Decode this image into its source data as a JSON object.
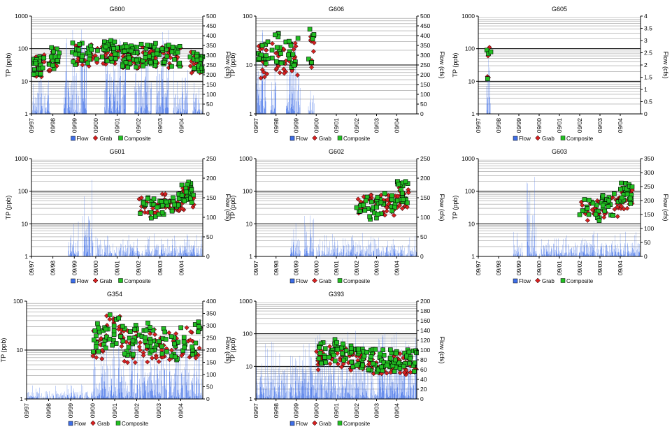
{
  "colors": {
    "flow": "#3f6fe8",
    "grab": "#d62020",
    "composite": "#22c022",
    "axis": "#000000",
    "major_grid": "#000000",
    "minor_grid": "#9a9a9a"
  },
  "legend": {
    "flow": "Flow",
    "grab": "Grab",
    "composite": "Composite"
  },
  "chart_data": [
    {
      "type": "line",
      "title": "G600",
      "ylabel": "TP (ppb)",
      "y2label": "Flow (cfs)",
      "yscale": "log",
      "ylim": [
        1,
        1000
      ],
      "y2lim": [
        0,
        500
      ],
      "y2ticks": [
        0,
        50,
        100,
        150,
        200,
        250,
        300,
        350,
        400,
        450,
        500
      ],
      "xticks": [
        "09/97",
        "09/98",
        "09/99",
        "09/00",
        "09/01",
        "09/02",
        "09/03",
        "09/04"
      ],
      "series": [
        {
          "name": "Flow",
          "kind": "area",
          "activity": [
            [
              0.0,
              0.9,
              200
            ],
            [
              1.5,
              2.6,
              460
            ],
            [
              3.4,
              4.4,
              420
            ],
            [
              4.8,
              5.6,
              380
            ],
            [
              5.8,
              6.4,
              430
            ],
            [
              6.6,
              7.3,
              260
            ],
            [
              7.5,
              8.0,
              200
            ]
          ]
        },
        {
          "name": "Grab",
          "kind": "points",
          "clusters": [
            [
              0.1,
              0.6,
              30,
              18
            ],
            [
              0.8,
              1.3,
              45,
              14
            ],
            [
              1.9,
              3.1,
              60,
              22
            ],
            [
              3.3,
              4.1,
              70,
              26
            ],
            [
              4.2,
              5.0,
              55,
              30
            ],
            [
              5.1,
              6.0,
              60,
              26
            ],
            [
              6.1,
              7.0,
              55,
              22
            ],
            [
              7.4,
              8.0,
              40,
              18
            ]
          ]
        },
        {
          "name": "Composite",
          "kind": "points",
          "clusters": [
            [
              0.1,
              0.6,
              35,
              20
            ],
            [
              0.8,
              1.3,
              50,
              16
            ],
            [
              1.9,
              3.1,
              70,
              26
            ],
            [
              3.3,
              4.1,
              80,
              28
            ],
            [
              4.2,
              5.0,
              60,
              32
            ],
            [
              5.1,
              6.0,
              65,
              28
            ],
            [
              6.1,
              7.0,
              60,
              24
            ],
            [
              7.4,
              8.0,
              45,
              20
            ]
          ]
        }
      ]
    },
    {
      "type": "line",
      "title": "G606",
      "ylabel": "TP (ppb)",
      "y2label": "Flow (cfs)",
      "yscale": "log",
      "ylim": [
        1,
        100
      ],
      "y2lim": [
        0,
        500
      ],
      "y2ticks": [
        0,
        50,
        100,
        150,
        200,
        250,
        300,
        350,
        400,
        450,
        500
      ],
      "xticks": [
        "09/97",
        "09/98",
        "09/99",
        "09/00",
        "09/01",
        "09/02",
        "09/03",
        "09/04"
      ],
      "series": [
        {
          "name": "Flow",
          "kind": "area",
          "activity": [
            [
              0.0,
              0.5,
              450
            ],
            [
              0.7,
              1.0,
              350
            ],
            [
              1.5,
              2.2,
              420
            ],
            [
              2.6,
              2.9,
              150
            ]
          ]
        },
        {
          "name": "Grab",
          "kind": "points",
          "clusters": [
            [
              0.1,
              0.6,
              12,
              14
            ],
            [
              0.8,
              1.5,
              15,
              16
            ],
            [
              1.6,
              2.1,
              13,
              14
            ],
            [
              2.6,
              2.9,
              20,
              8
            ]
          ]
        },
        {
          "name": "Composite",
          "kind": "points",
          "clusters": [
            [
              0.1,
              0.6,
              15,
              16
            ],
            [
              0.8,
              1.5,
              20,
              16
            ],
            [
              1.6,
              2.1,
              16,
              14
            ],
            [
              2.6,
              2.9,
              25,
              8
            ]
          ]
        }
      ]
    },
    {
      "type": "line",
      "title": "G605",
      "ylabel": "TP (ppb)",
      "y2label": "Flow (cfs)",
      "yscale": "log",
      "ylim": [
        1,
        1000
      ],
      "y2lim": [
        0,
        4
      ],
      "y2ticks": [
        0,
        0.5,
        1,
        1.5,
        2,
        2.5,
        3,
        3.5,
        4
      ],
      "xticks": [
        "09/97",
        "09/98",
        "09/99",
        "09/00",
        "09/01",
        "09/02",
        "09/03",
        "09/04"
      ],
      "series": [
        {
          "name": "Flow",
          "kind": "area",
          "activity": [
            [
              0.4,
              0.6,
              3.5
            ]
          ]
        },
        {
          "name": "Grab",
          "kind": "points",
          "points": [
            [
              0.45,
              14
            ],
            [
              0.5,
              13
            ],
            [
              0.55,
              110
            ],
            [
              0.48,
              60
            ]
          ]
        },
        {
          "name": "Composite",
          "kind": "points",
          "points": [
            [
              0.42,
              90
            ],
            [
              0.5,
              70
            ],
            [
              0.62,
              80
            ],
            [
              0.46,
              12
            ]
          ]
        }
      ]
    },
    {
      "type": "line",
      "title": "G601",
      "ylabel": "TP (ppb)",
      "y2label": "Flow (cfs)",
      "yscale": "log",
      "ylim": [
        1,
        1000
      ],
      "y2lim": [
        0,
        250
      ],
      "y2ticks": [
        0,
        50,
        100,
        150,
        200,
        250
      ],
      "xticks": [
        "09/97",
        "09/98",
        "09/99",
        "09/00",
        "09/01",
        "09/02",
        "09/03",
        "09/04"
      ],
      "series": [
        {
          "name": "Flow",
          "kind": "area",
          "activity": [
            [
              1.7,
              2.2,
              90
            ],
            [
              2.4,
              2.9,
              200
            ],
            [
              3.0,
              8.0,
              60
            ]
          ]
        },
        {
          "name": "Grab",
          "kind": "points",
          "clusters": [
            [
              5.0,
              6.0,
              35,
              18
            ],
            [
              6.0,
              7.0,
              40,
              20
            ],
            [
              7.0,
              7.6,
              60,
              20
            ]
          ]
        },
        {
          "name": "Composite",
          "kind": "points",
          "clusters": [
            [
              5.0,
              6.0,
              30,
              18
            ],
            [
              6.0,
              7.0,
              40,
              20
            ],
            [
              7.0,
              7.6,
              90,
              22
            ]
          ]
        }
      ]
    },
    {
      "type": "line",
      "title": "G602",
      "ylabel": "TP (ppb)",
      "y2label": "Flow (cfs)",
      "yscale": "log",
      "ylim": [
        1,
        1000
      ],
      "y2lim": [
        0,
        250
      ],
      "y2ticks": [
        0,
        50,
        100,
        150,
        200,
        250
      ],
      "xticks": [
        "09/97",
        "09/98",
        "09/99",
        "09/00",
        "09/01",
        "09/02",
        "09/03",
        "09/04"
      ],
      "series": [
        {
          "name": "Flow",
          "kind": "area",
          "activity": [
            [
              1.7,
              2.2,
              90
            ],
            [
              2.4,
              2.9,
              200
            ],
            [
              3.0,
              8.0,
              60
            ]
          ]
        },
        {
          "name": "Grab",
          "kind": "points",
          "clusters": [
            [
              5.0,
              6.0,
              35,
              18
            ],
            [
              6.0,
              7.0,
              40,
              20
            ],
            [
              7.0,
              7.6,
              60,
              20
            ]
          ]
        },
        {
          "name": "Composite",
          "kind": "points",
          "clusters": [
            [
              5.0,
              6.0,
              30,
              18
            ],
            [
              6.0,
              7.0,
              40,
              20
            ],
            [
              7.0,
              7.6,
              90,
              22
            ]
          ]
        }
      ]
    },
    {
      "type": "line",
      "title": "G603",
      "ylabel": "TP (ppb)",
      "y2label": "Flow (cfs)",
      "yscale": "log",
      "ylim": [
        1,
        1000
      ],
      "y2lim": [
        0,
        350
      ],
      "y2ticks": [
        0,
        50,
        100,
        150,
        200,
        250,
        300,
        350
      ],
      "xticks": [
        "09/97",
        "09/98",
        "09/99",
        "09/00",
        "09/01",
        "09/02",
        "09/03",
        "09/04"
      ],
      "series": [
        {
          "name": "Flow",
          "kind": "area",
          "activity": [
            [
              1.7,
              2.2,
              90
            ],
            [
              2.4,
              2.9,
              320
            ],
            [
              3.0,
              8.0,
              90
            ]
          ]
        },
        {
          "name": "Grab",
          "kind": "points",
          "clusters": [
            [
              5.0,
              6.0,
              25,
              18
            ],
            [
              6.0,
              7.0,
              35,
              20
            ],
            [
              7.0,
              7.6,
              60,
              20
            ]
          ]
        },
        {
          "name": "Composite",
          "kind": "points",
          "clusters": [
            [
              5.0,
              6.0,
              25,
              18
            ],
            [
              6.0,
              7.0,
              40,
              20
            ],
            [
              7.0,
              7.6,
              90,
              22
            ]
          ]
        }
      ]
    },
    {
      "type": "line",
      "title": "G354",
      "ylabel": "TP (ppb)",
      "y2label": "Flow (cfs)",
      "yscale": "log",
      "ylim": [
        1,
        100
      ],
      "y2lim": [
        0,
        400
      ],
      "y2ticks": [
        0,
        50,
        100,
        150,
        200,
        250,
        300,
        350,
        400
      ],
      "xticks": [
        "09/97",
        "09/98",
        "09/99",
        "09/00",
        "09/01",
        "09/02",
        "09/03",
        "09/04"
      ],
      "series": [
        {
          "name": "Flow",
          "kind": "area",
          "activity": [
            [
              0.0,
              3.0,
              60
            ],
            [
              3.0,
              8.0,
              250
            ]
          ]
        },
        {
          "name": "Grab",
          "kind": "points",
          "clusters": [
            [
              3.0,
              3.6,
              14,
              16
            ],
            [
              3.6,
              4.3,
              25,
              14
            ],
            [
              4.3,
              5.0,
              12,
              20
            ],
            [
              5.1,
              5.9,
              12,
              20
            ],
            [
              6.0,
              6.9,
              12,
              20
            ],
            [
              7.0,
              7.9,
              14,
              18
            ]
          ]
        },
        {
          "name": "Composite",
          "kind": "points",
          "clusters": [
            [
              3.0,
              3.6,
              18,
              16
            ],
            [
              3.6,
              4.3,
              28,
              14
            ],
            [
              4.3,
              5.0,
              15,
              20
            ],
            [
              5.1,
              5.9,
              16,
              20
            ],
            [
              6.0,
              6.9,
              14,
              20
            ],
            [
              7.0,
              7.9,
              18,
              18
            ]
          ]
        }
      ]
    },
    {
      "type": "line",
      "title": "G393",
      "ylabel": "TP (ppb)",
      "y2label": "Flow (cfs)",
      "yscale": "log",
      "ylim": [
        1,
        1000
      ],
      "y2lim": [
        0,
        200
      ],
      "y2ticks": [
        0,
        20,
        40,
        60,
        80,
        100,
        120,
        140,
        160,
        180,
        200
      ],
      "xticks": [
        "09/97",
        "09/98",
        "09/99",
        "09/00",
        "09/01",
        "09/02",
        "09/03",
        "09/04"
      ],
      "series": [
        {
          "name": "Flow",
          "kind": "area",
          "activity": [
            [
              0.0,
              2.8,
              120
            ],
            [
              2.8,
              8.0,
              140
            ]
          ]
        },
        {
          "name": "Grab",
          "kind": "points",
          "clusters": [
            [
              3.0,
              3.5,
              15,
              14
            ],
            [
              3.6,
              4.5,
              20,
              22
            ],
            [
              4.6,
              5.4,
              15,
              24
            ],
            [
              5.5,
              6.4,
              12,
              24
            ],
            [
              6.5,
              7.2,
              12,
              20
            ],
            [
              7.3,
              8.0,
              12,
              18
            ]
          ]
        },
        {
          "name": "Composite",
          "kind": "points",
          "clusters": [
            [
              3.0,
              3.5,
              25,
              14
            ],
            [
              3.6,
              4.5,
              30,
              22
            ],
            [
              4.6,
              5.4,
              20,
              24
            ],
            [
              5.5,
              6.4,
              15,
              24
            ],
            [
              6.5,
              7.2,
              15,
              20
            ],
            [
              7.3,
              8.0,
              15,
              18
            ]
          ]
        }
      ]
    }
  ]
}
